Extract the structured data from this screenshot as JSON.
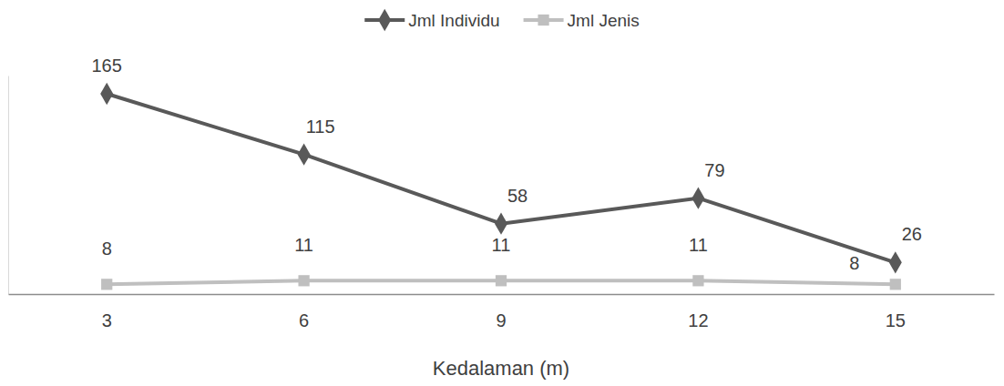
{
  "chart_data": {
    "type": "line",
    "x_label": "Kedalaman (m)",
    "categories": [
      3,
      6,
      9,
      12,
      15
    ],
    "series": [
      {
        "name": "Jml Individu",
        "color": "#595959",
        "marker": "diamond",
        "values": [
          165,
          115,
          58,
          79,
          26
        ]
      },
      {
        "name": "Jml Jenis",
        "color": "#bfbfbf",
        "marker": "square",
        "values": [
          8,
          11,
          11,
          11,
          8
        ]
      }
    ],
    "ylim": [
      0,
      180
    ],
    "tick_labels": "x",
    "data_labels": true,
    "legend": "top",
    "grid": false
  }
}
